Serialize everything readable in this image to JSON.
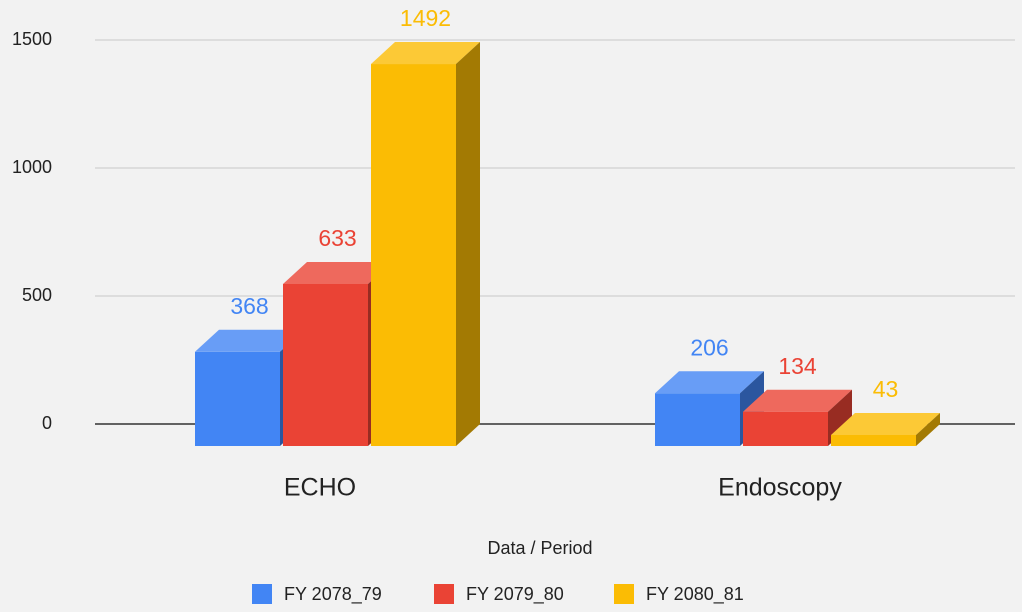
{
  "chart_data": {
    "type": "bar3d",
    "categories": [
      "ECHO",
      "Endoscopy"
    ],
    "series": [
      {
        "name": "FY 2078_79",
        "color": "#4285f4",
        "values": [
          368,
          206
        ]
      },
      {
        "name": "FY 2079_80",
        "color": "#ea4335",
        "values": [
          633,
          134
        ]
      },
      {
        "name": "FY 2080_81",
        "color": "#fbbc04",
        "values": [
          1492,
          43
        ]
      }
    ],
    "ylim": [
      0,
      1500
    ],
    "yticks": [
      0,
      500,
      1000,
      1500
    ],
    "grid": true,
    "x_label": "Data / Period",
    "legend": "bottom"
  }
}
